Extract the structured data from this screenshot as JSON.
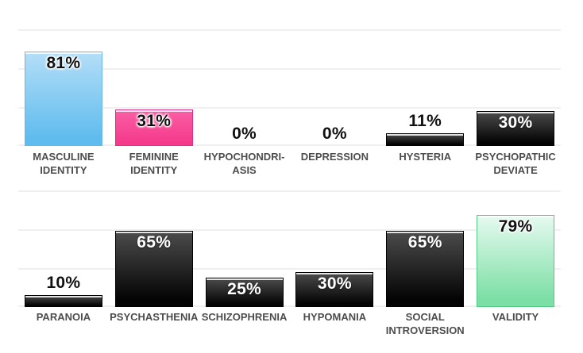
{
  "chart_data": {
    "type": "bar",
    "unit": "%",
    "ylim": [
      0,
      100
    ],
    "grid": true,
    "gridlines_pct": [
      0,
      33.3,
      66.7,
      100
    ],
    "gridline_color": "#f0f0f0",
    "label_color": "#4d4d4d",
    "background": "#ffffff",
    "inside_label_min_value": 20,
    "rows": [
      {
        "bars": [
          {
            "label": "MASCULINE\nIDENTITY",
            "value": 81,
            "value_label": "81%",
            "color": "blue"
          },
          {
            "label": "FEMININE\nIDENTITY",
            "value": 31,
            "value_label": "31%",
            "color": "pink"
          },
          {
            "label": "HYPOCHONDRI-\nASIS",
            "value": 0,
            "value_label": "0%",
            "color": "black"
          },
          {
            "label": "DEPRESSION",
            "value": 0,
            "value_label": "0%",
            "color": "black"
          },
          {
            "label": "HYSTERIA",
            "value": 11,
            "value_label": "11%",
            "color": "black"
          },
          {
            "label": "PSYCHOPATHIC\nDEVIATE",
            "value": 30,
            "value_label": "30%",
            "color": "black"
          }
        ]
      },
      {
        "bars": [
          {
            "label": "PARANOIA",
            "value": 10,
            "value_label": "10%",
            "color": "black"
          },
          {
            "label": "PSYCHASTHENIA",
            "value": 65,
            "value_label": "65%",
            "color": "black"
          },
          {
            "label": "SCHIZOPHRENIA",
            "value": 25,
            "value_label": "25%",
            "color": "black"
          },
          {
            "label": "HYPOMANIA",
            "value": 30,
            "value_label": "30%",
            "color": "black"
          },
          {
            "label": "SOCIAL\nINTROVERSION",
            "value": 65,
            "value_label": "65%",
            "color": "black"
          },
          {
            "label": "VALIDITY",
            "value": 79,
            "value_label": "79%",
            "color": "green"
          }
        ]
      }
    ],
    "colors": {
      "blue": {
        "top": "#b4def7",
        "bottom": "#60bcee",
        "border": "#68b8e3",
        "text_class": "text-dark"
      },
      "pink": {
        "top": "#fa5fa6",
        "bottom": "#f53a8c",
        "border": "#e02e84",
        "text_class": "text-dark"
      },
      "black": {
        "top": "#4c4c4c",
        "bottom": "#030303",
        "border": "#000000",
        "text_class": "text-light"
      },
      "green": {
        "top": "#e6faf0",
        "bottom": "#7cdfa5",
        "border": "#56c987",
        "text_class": "text-dark"
      }
    }
  }
}
